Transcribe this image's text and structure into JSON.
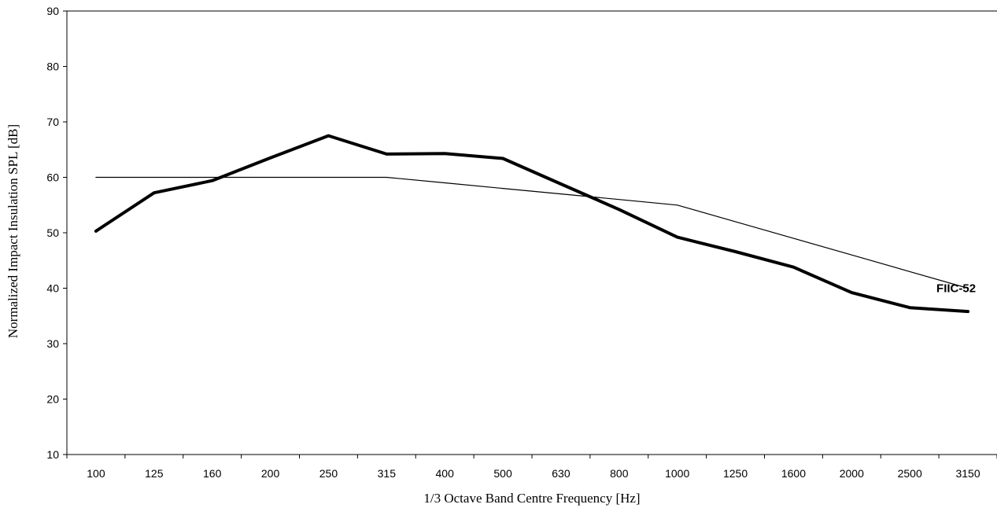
{
  "chart_data": {
    "type": "line",
    "title": "",
    "xlabel": "1/3 Octave Band Centre Frequency [Hz]",
    "ylabel": "Normalized Impact Insulation SPL [dB]",
    "categories": [
      "100",
      "125",
      "160",
      "200",
      "250",
      "315",
      "400",
      "500",
      "630",
      "800",
      "1000",
      "1250",
      "1600",
      "2000",
      "2500",
      "3150"
    ],
    "ylim": [
      10,
      90
    ],
    "yticks": [
      10,
      20,
      30,
      40,
      50,
      60,
      70,
      80,
      90
    ],
    "grid": false,
    "series": [
      {
        "name": "",
        "style": "thick",
        "color": "#000000",
        "values": [
          50.3,
          57.2,
          59.4,
          63.5,
          67.5,
          64.2,
          64.3,
          63.4,
          58.8,
          54.2,
          49.2,
          46.6,
          43.8,
          39.2,
          36.5,
          35.8
        ]
      },
      {
        "name": "",
        "style": "thin",
        "color": "#000000",
        "values": [
          60,
          60,
          60,
          60,
          60,
          60,
          59,
          58,
          57,
          56,
          55,
          52,
          49,
          46,
          43,
          40
        ]
      }
    ],
    "annotations": [
      {
        "text": "FIIC-52",
        "category": "3150",
        "y": 40
      }
    ]
  }
}
